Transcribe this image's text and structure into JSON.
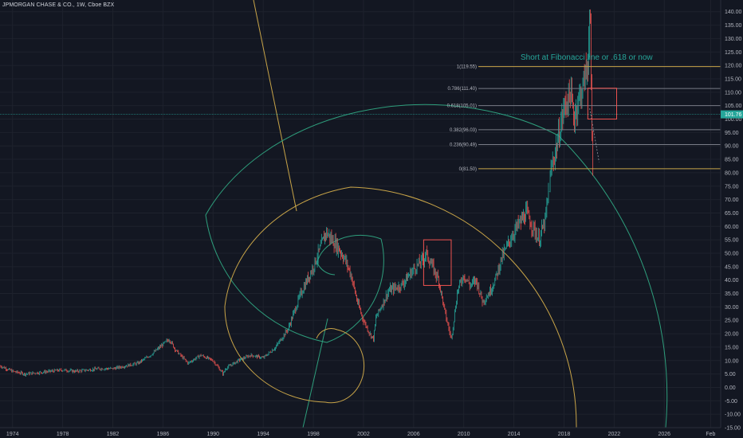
{
  "header": {
    "symbol": "JPMORGAN CHASE & CO., 1W, Cboe BZX"
  },
  "annotation": "Short at Fibonacci line or .618 or now",
  "current_price": "101.76",
  "colors": {
    "background": "#131722",
    "grid": "#1e222d",
    "up": "#26a69a",
    "down": "#ef5350",
    "fib": "#c8a448",
    "spiral_green": "#2e9e7c",
    "spiral_yellow": "#c8a448",
    "box": "#ef5350",
    "price_tag": "#26a69a",
    "label": "#b2b5be"
  },
  "fib_levels": [
    {
      "label": "1(119.55)",
      "value": 119.55
    },
    {
      "label": "0.786(111.40)",
      "value": 111.4
    },
    {
      "label": "0.618(105.01)",
      "value": 105.01
    },
    {
      "label": "0.382(96.03)",
      "value": 96.03
    },
    {
      "label": "0.236(90.49)",
      "value": 90.49
    },
    {
      "label": "0(81.50)",
      "value": 81.5
    }
  ],
  "chart_data": {
    "type": "line",
    "title": "JPMORGAN CHASE & CO., 1W, Cboe BZX",
    "xlabel": "",
    "ylabel": "",
    "xlim": [
      1973.0,
      2030.5
    ],
    "ylim": [
      -15,
      142
    ],
    "x_ticks": [
      "1974",
      "1978",
      "1982",
      "1986",
      "1990",
      "1994",
      "1998",
      "2002",
      "2006",
      "2010",
      "2014",
      "2018",
      "2022",
      "2026",
      "Feb"
    ],
    "x_tick_values": [
      1974,
      1978,
      1982,
      1986,
      1990,
      1994,
      1998,
      2002,
      2006,
      2010,
      2014,
      2018,
      2022,
      2026,
      2029.7
    ],
    "y_ticks": [
      "-15.00",
      "-10.00",
      "-5.00",
      "0.00",
      "5.00",
      "10.00",
      "15.00",
      "20.00",
      "25.00",
      "30.00",
      "35.00",
      "40.00",
      "45.00",
      "50.00",
      "55.00",
      "60.00",
      "65.00",
      "70.00",
      "75.00",
      "80.00",
      "85.00",
      "90.00",
      "95.00",
      "100.00",
      "105.00",
      "110.00",
      "115.00",
      "120.00",
      "125.00",
      "130.00",
      "135.00",
      "140.00"
    ],
    "y_tick_values": [
      -15,
      -10,
      -5,
      0,
      5,
      10,
      15,
      20,
      25,
      30,
      35,
      40,
      45,
      50,
      55,
      60,
      65,
      70,
      75,
      80,
      85,
      90,
      95,
      100,
      105,
      110,
      115,
      120,
      125,
      130,
      135,
      140
    ],
    "series": [
      {
        "x": [
          1973.0,
          1974,
          1975,
          1976,
          1977,
          1978,
          1979,
          1980,
          1981,
          1982,
          1983,
          1984,
          1985,
          1986,
          1986.5,
          1987,
          1987.8,
          1988,
          1989,
          1990,
          1990.8,
          1991,
          1992,
          1993,
          1994,
          1995,
          1996,
          1997,
          1998,
          1998.8,
          1999,
          1999.5,
          2000,
          2000.5,
          2001,
          2001.5,
          2002,
          2002.5,
          2002.8,
          2003,
          2004,
          2005,
          2006,
          2006.8,
          2007,
          2007.5,
          2008,
          2008.5,
          2009,
          2009.2,
          2009.5,
          2010,
          2010.5,
          2011,
          2011.5,
          2012,
          2012.5,
          2013,
          2014,
          2015,
          2015.5,
          2016,
          2016.5,
          2017,
          2017.5,
          2018,
          2018.5,
          2018.8,
          2019,
          2019.5,
          2019.9,
          2020.0,
          2020.1,
          2020.2,
          2020.3
        ],
        "y": [
          8,
          6,
          5,
          5.5,
          6,
          6.5,
          6,
          6.5,
          7,
          7,
          8,
          9,
          12,
          16,
          18,
          14,
          10,
          9,
          12,
          10,
          5,
          7,
          10,
          12,
          11,
          15,
          22,
          35,
          45,
          55,
          58,
          55,
          52,
          48,
          42,
          32,
          25,
          20,
          18,
          26,
          36,
          38,
          44,
          48,
          50,
          45,
          40,
          28,
          18,
          25,
          36,
          42,
          38,
          40,
          32,
          35,
          40,
          48,
          58,
          65,
          60,
          55,
          62,
          82,
          92,
          104,
          110,
          100,
          105,
          112,
          121,
          140,
          132,
          100,
          79
        ],
        "color": "#b2b5be"
      }
    ],
    "fib_levels": [
      119.55,
      111.4,
      105.01,
      96.03,
      90.49,
      81.5
    ],
    "current_price": 101.76
  }
}
